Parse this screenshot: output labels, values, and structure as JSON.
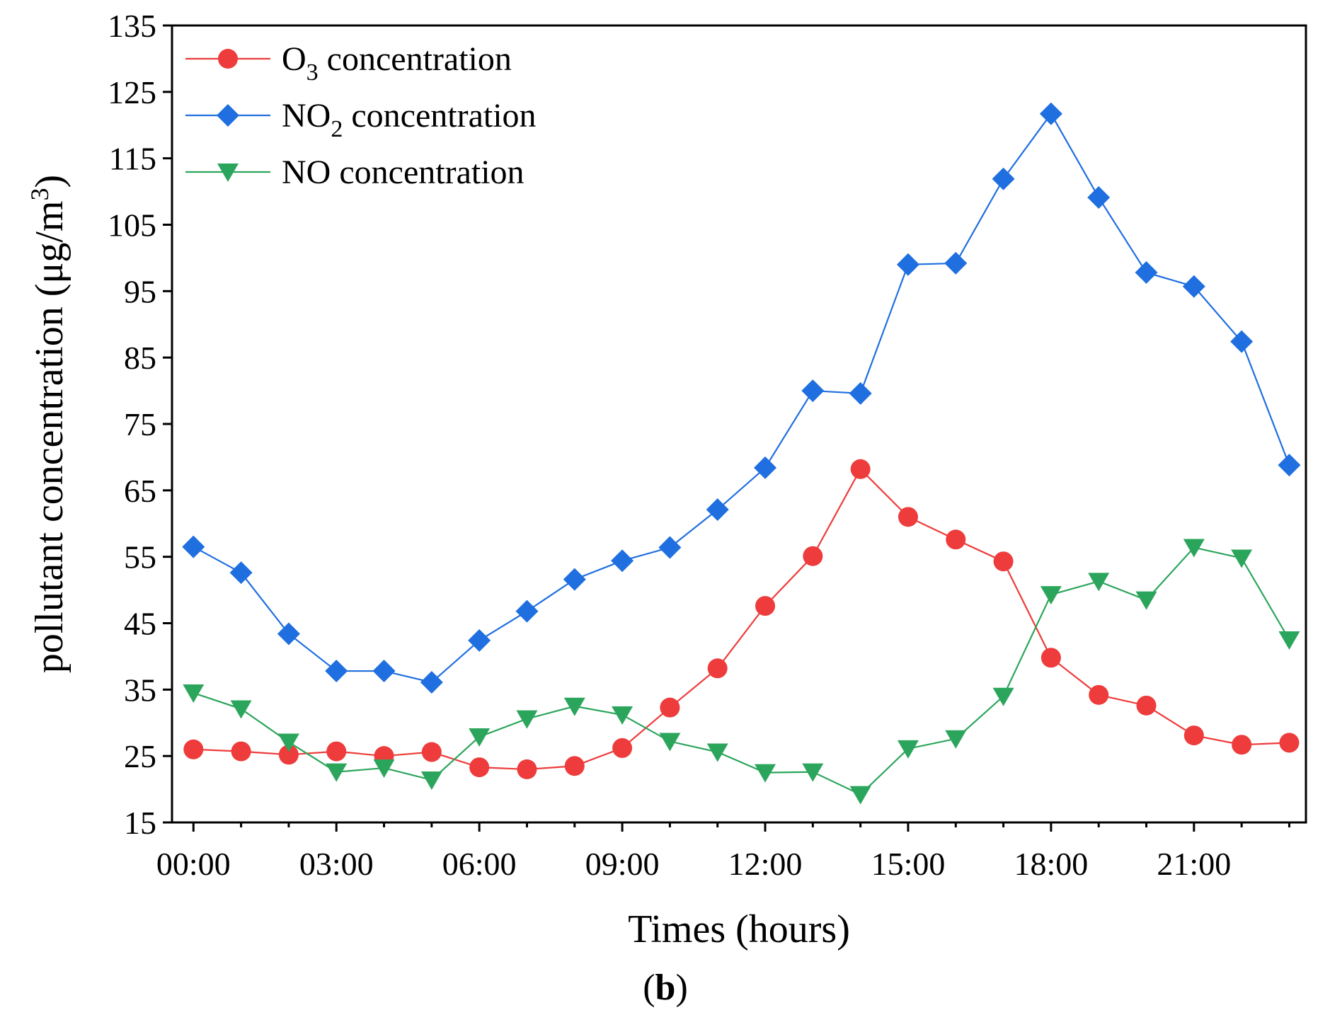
{
  "chart_data": {
    "type": "line",
    "title": "",
    "xlabel": "Times (hours)",
    "ylabel": {
      "main": "pollutant concentration (μg/m",
      "superscript": "3",
      "close": ")"
    },
    "caption": {
      "open": "(",
      "letter": "b",
      "close": ")"
    },
    "x": [
      0,
      1,
      2,
      3,
      4,
      5,
      6,
      7,
      8,
      9,
      10,
      11,
      12,
      13,
      14,
      15,
      16,
      17,
      18,
      19,
      20,
      21,
      22,
      23
    ],
    "xlim": [
      -0.45,
      23.35
    ],
    "ylim": [
      15,
      135
    ],
    "x_ticks": [
      {
        "value": 0,
        "label": "00:00"
      },
      {
        "value": 3,
        "label": "03:00"
      },
      {
        "value": 6,
        "label": "06:00"
      },
      {
        "value": 9,
        "label": "09:00"
      },
      {
        "value": 12,
        "label": "12:00"
      },
      {
        "value": 15,
        "label": "15:00"
      },
      {
        "value": 18,
        "label": "18:00"
      },
      {
        "value": 21,
        "label": "21:00"
      }
    ],
    "y_ticks": [
      15,
      25,
      35,
      45,
      55,
      65,
      75,
      85,
      95,
      105,
      115,
      125,
      135
    ],
    "grid": false,
    "legend_position": "top-left",
    "series": [
      {
        "name": "O3 concentration",
        "legend": {
          "prefix": "O",
          "subscript": "3",
          "suffix": " concentration"
        },
        "color": "#ee3b3b",
        "marker": "circle",
        "values": [
          26,
          25.7,
          25.2,
          25.7,
          25,
          25.6,
          23.3,
          23,
          23.5,
          26.2,
          32.3,
          38.2,
          47.6,
          55.1,
          68.2,
          61,
          57.6,
          54.3,
          39.8,
          34.2,
          32.6,
          28.1,
          26.7,
          27
        ]
      },
      {
        "name": "NO2 concentration",
        "legend": {
          "prefix": "NO",
          "subscript": "2",
          "suffix": " concentration"
        },
        "color": "#1f6fe0",
        "marker": "diamond",
        "values": [
          56.5,
          52.6,
          43.4,
          37.8,
          37.8,
          36.1,
          42.4,
          46.8,
          51.6,
          54.4,
          56.4,
          62.1,
          68.4,
          80,
          79.6,
          99,
          99.2,
          111.9,
          121.7,
          109.1,
          97.8,
          95.7,
          87.4,
          68.8
        ]
      },
      {
        "name": "NO concentration",
        "legend": {
          "prefix": "NO",
          "subscript": "",
          "suffix": " concentration"
        },
        "color": "#2ca55c",
        "marker": "triangle-down",
        "values": [
          34.5,
          32.1,
          27.1,
          22.6,
          23.2,
          21.4,
          27.9,
          30.6,
          32.5,
          31.2,
          27.2,
          25.6,
          22.5,
          22.6,
          19.2,
          26.1,
          27.6,
          34,
          49.3,
          51.3,
          48.5,
          56.4,
          54.8,
          42.5
        ]
      }
    ]
  }
}
